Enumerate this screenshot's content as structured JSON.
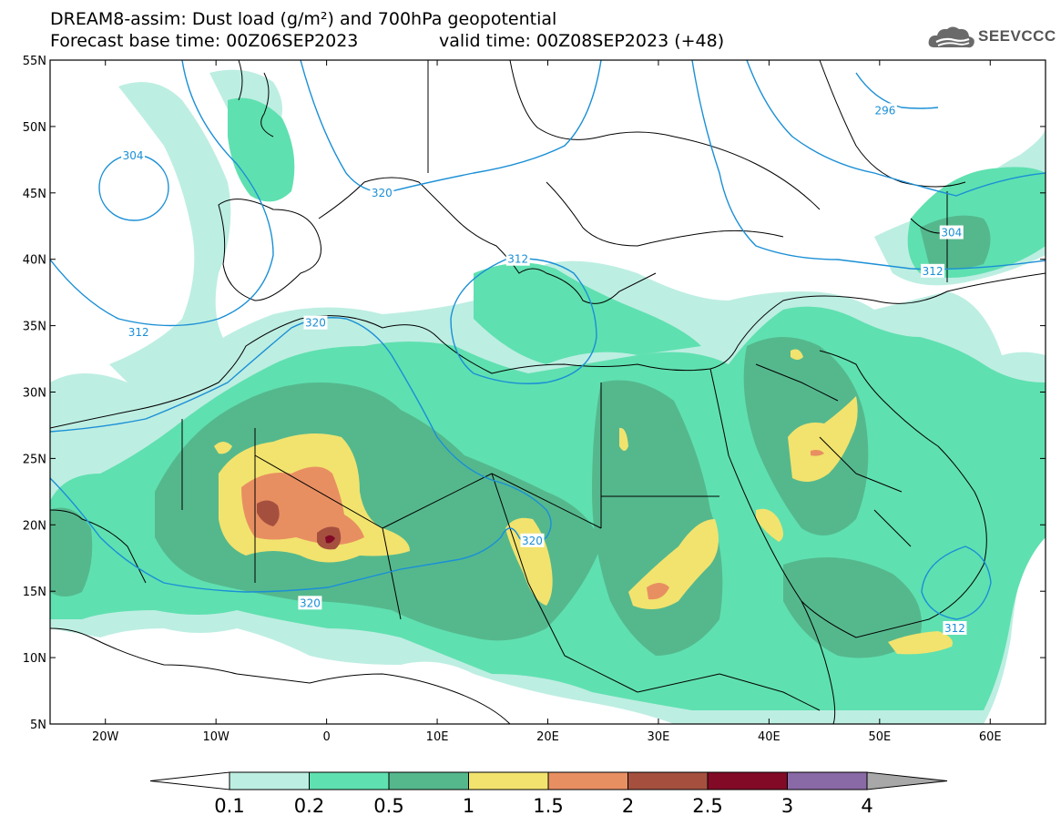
{
  "title": {
    "line1": "DREAM8-assim: Dust load (g/m²) and 700hPa geopotential",
    "line2_base": "Forecast base time: 00Z06SEP2023",
    "line2_valid": "valid time: 00Z08SEP2023 (+48)"
  },
  "logo": {
    "text": "SEEVCCC",
    "icon": "cloud-icon"
  },
  "map": {
    "lon_range": [
      -25,
      65
    ],
    "lat_range": [
      5,
      55
    ],
    "lat_ticks": [
      "55N",
      "50N",
      "45N",
      "40N",
      "35N",
      "30N",
      "25N",
      "20N",
      "15N",
      "10N",
      "5N"
    ],
    "lon_ticks": [
      "20W",
      "10W",
      "0",
      "10E",
      "20E",
      "30E",
      "40E",
      "50E",
      "60E"
    ],
    "contour_labels": [
      {
        "text": "304",
        "lon": -17.5,
        "lat": 47.8
      },
      {
        "text": "304",
        "lon": 56.5,
        "lat": 42.0
      },
      {
        "text": "296",
        "lon": 50.5,
        "lat": 51.2
      },
      {
        "text": "312",
        "lon": -17.0,
        "lat": 34.5
      },
      {
        "text": "312",
        "lon": 17.3,
        "lat": 40.0
      },
      {
        "text": "312",
        "lon": 54.8,
        "lat": 39.1
      },
      {
        "text": "312",
        "lon": 56.8,
        "lat": 12.2
      },
      {
        "text": "320",
        "lon": 5.0,
        "lat": 45.0
      },
      {
        "text": "320",
        "lon": -1.0,
        "lat": 35.2
      },
      {
        "text": "320",
        "lon": 18.6,
        "lat": 18.8
      },
      {
        "text": "320",
        "lon": -1.5,
        "lat": 14.1
      }
    ],
    "colors": {
      "coast": "#000000",
      "contour": "#1a8fd6"
    }
  },
  "colorbar": {
    "labels": [
      "0.1",
      "0.2",
      "0.5",
      "1",
      "1.5",
      "2",
      "2.5",
      "3",
      "4"
    ],
    "colors": [
      "#bdeee2",
      "#5fe0b0",
      "#55b88d",
      "#f2e36e",
      "#e88f62",
      "#a5503f",
      "#820a26",
      "#8a6aa6"
    ],
    "under_color": "#ffffff",
    "over_color": "#a8a8a8"
  }
}
